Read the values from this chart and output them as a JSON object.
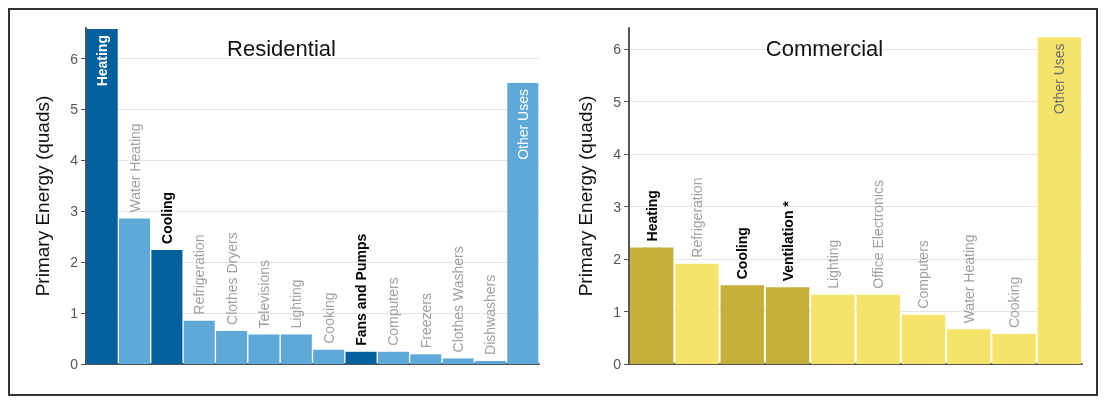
{
  "chart_data": [
    {
      "type": "bar",
      "title": "Residential",
      "ylabel": "Primary Energy (quads)",
      "categories": [
        "Heating",
        "Water Heating",
        "Cooling",
        "Refrigeration",
        "Clothes Dryers",
        "Televisions",
        "Lighting",
        "Cooking",
        "Fans and Pumps",
        "Computers",
        "Freezers",
        "Clothes Washers",
        "Dishwashers",
        "Other Uses"
      ],
      "values": [
        6.58,
        2.86,
        2.24,
        0.85,
        0.65,
        0.58,
        0.58,
        0.28,
        0.24,
        0.24,
        0.19,
        0.11,
        0.06,
        5.52
      ],
      "colors": [
        "#02609e",
        "#5fa9d8",
        "#02609e",
        "#5fa9d8",
        "#5fa9d8",
        "#5fa9d8",
        "#5fa9d8",
        "#5fa9d8",
        "#02609e",
        "#5fa9d8",
        "#5fa9d8",
        "#5fa9d8",
        "#5fa9d8",
        "#5fa9d8"
      ],
      "ylim": [
        0,
        6.6
      ],
      "yticks": [
        0,
        1,
        2,
        3,
        4,
        5,
        6
      ],
      "grid": "y",
      "tick_labels": "y"
    },
    {
      "type": "bar",
      "title": "Commercial",
      "ylabel": "Primary Energy (quads)",
      "categories": [
        "Heating",
        "Refrigeration",
        "Cooling",
        "Ventilation *",
        "Lighting",
        "Office Electronics",
        "Computers",
        "Water Heating",
        "Cooking",
        "Other Uses"
      ],
      "values": [
        2.22,
        1.91,
        1.5,
        1.46,
        1.32,
        1.32,
        0.94,
        0.66,
        0.57,
        6.22
      ],
      "colors": [
        "#c5b13a",
        "#f6e46a",
        "#c5b13a",
        "#c5b13a",
        "#f6e46a",
        "#f6e46a",
        "#f6e46a",
        "#f6e46a",
        "#f6e46a",
        "#f6e46a"
      ],
      "ylim": [
        0,
        6.4
      ],
      "yticks": [
        0,
        1,
        2,
        3,
        4,
        5,
        6
      ],
      "grid": "y",
      "tick_labels": "y"
    }
  ]
}
